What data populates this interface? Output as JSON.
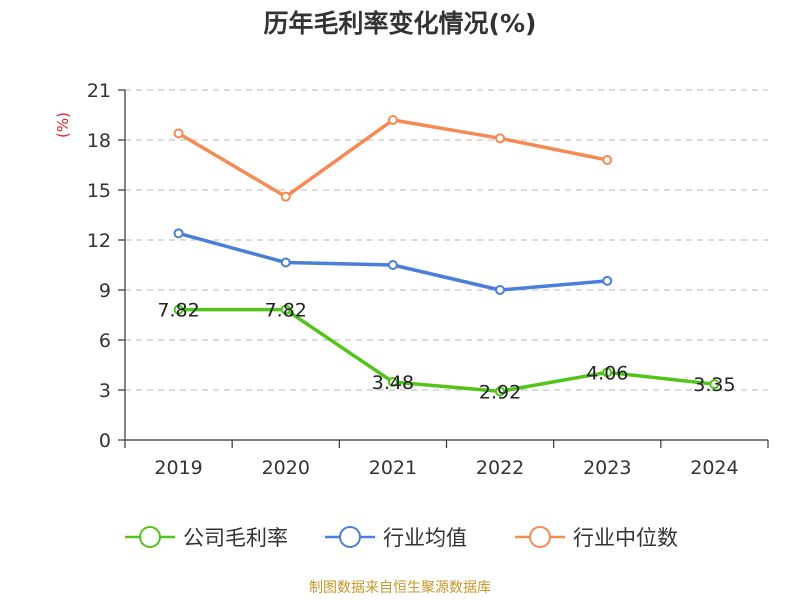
{
  "chart_data": {
    "type": "line",
    "title": "历年毛利率变化情况(%)",
    "ylabel": "(%)",
    "xlabel": "",
    "categories": [
      "2019",
      "2020",
      "2021",
      "2022",
      "2023",
      "2024"
    ],
    "ylim": [
      0,
      21
    ],
    "yticks": [
      0,
      3,
      6,
      9,
      12,
      15,
      18,
      21
    ],
    "grid": true,
    "legend_position": "bottom",
    "series": [
      {
        "name": "公司毛利率",
        "color": "#52c41a",
        "values": [
          7.82,
          7.82,
          3.48,
          2.92,
          4.06,
          3.35
        ],
        "labels": [
          "7.82",
          "7.82",
          "3.48",
          "2.92",
          "4.06",
          "3.35"
        ]
      },
      {
        "name": "行业均值",
        "color": "#4a7fd9",
        "values": [
          12.4,
          10.65,
          10.5,
          9.0,
          9.55,
          null
        ]
      },
      {
        "name": "行业中位数",
        "color": "#f58a55",
        "values": [
          18.4,
          14.6,
          19.2,
          18.1,
          16.8,
          null
        ]
      }
    ]
  },
  "footer": {
    "source": "制图数据来自恒生聚源数据库"
  }
}
